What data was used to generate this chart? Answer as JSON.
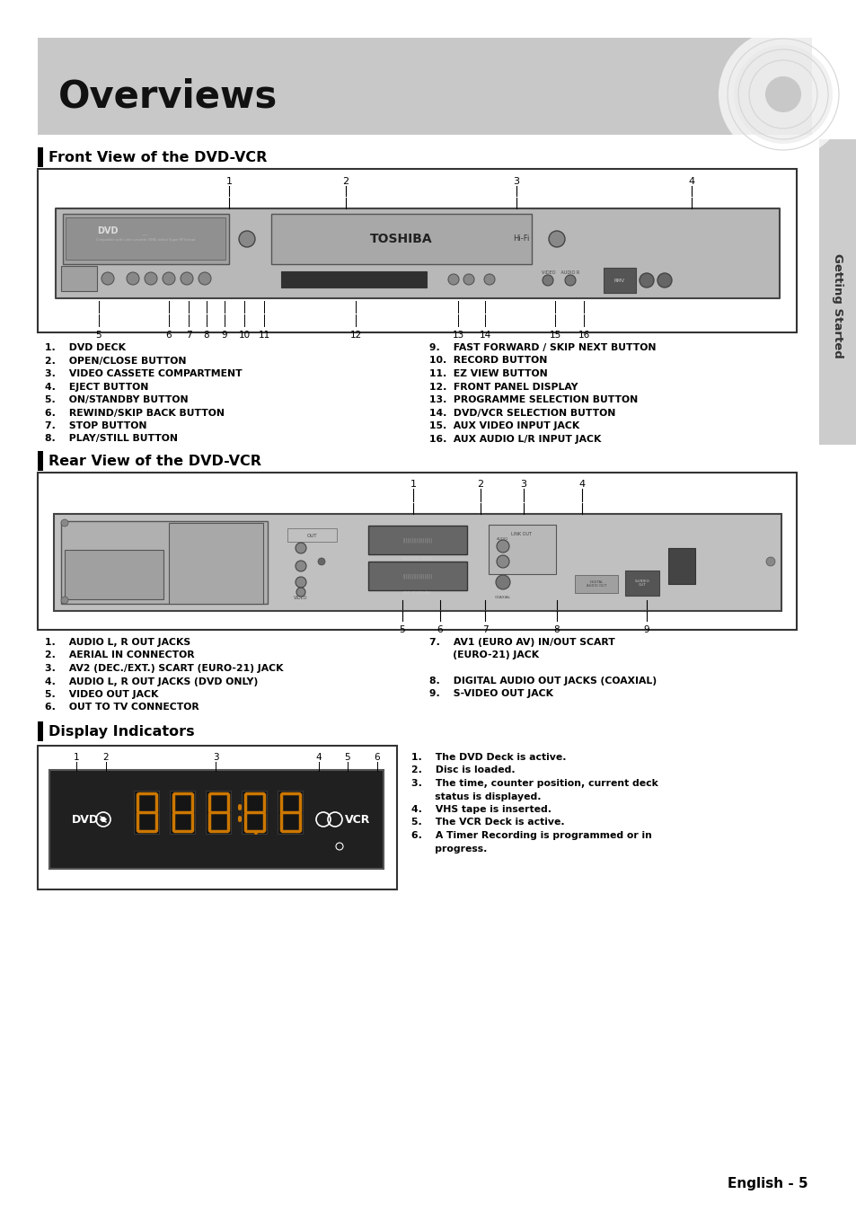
{
  "page_bg": "#ffffff",
  "header_bg": "#c8c8c8",
  "header_text": "Overviews",
  "section_bar_color": "#000000",
  "sidebar_bg": "#cccccc",
  "sidebar_text": "Getting Started",
  "section1_title": "Front View of the DVD-VCR",
  "section2_title": "Rear View of the DVD-VCR",
  "section3_title": "Display Indicators",
  "front_items_left": [
    "1.    DVD DECK",
    "2.    OPEN/CLOSE BUTTON",
    "3.    VIDEO CASSETE COMPARTMENT",
    "4.    EJECT BUTTON",
    "5.    ON/STANDBY BUTTON",
    "6.    REWIND/SKIP BACK BUTTON",
    "7.    STOP BUTTON",
    "8.    PLAY/STILL BUTTON"
  ],
  "front_items_right": [
    "9.    FAST FORWARD / SKIP NEXT BUTTON",
    "10.  RECORD BUTTON",
    "11.  EZ VIEW BUTTON",
    "12.  FRONT PANEL DISPLAY",
    "13.  PROGRAMME SELECTION BUTTON",
    "14.  DVD/VCR SELECTION BUTTON",
    "15.  AUX VIDEO INPUT JACK",
    "16.  AUX AUDIO L/R INPUT JACK"
  ],
  "rear_items_left": [
    "1.    AUDIO L, R OUT JACKS",
    "2.    AERIAL IN CONNECTOR",
    "3.    AV2 (DEC./EXT.) SCART (EURO-21) JACK",
    "4.    AUDIO L, R OUT JACKS (DVD ONLY)",
    "5.    VIDEO OUT JACK",
    "6.    OUT TO TV CONNECTOR"
  ],
  "rear_items_right_1": "7.    AV1 (EURO AV) IN/OUT SCART",
  "rear_items_right_2": "       (EURO-21) JACK",
  "rear_items_right_3": "8.    DIGITAL AUDIO OUT JACKS (COAXIAL)",
  "rear_items_right_4": "9.    S-VIDEO OUT JACK",
  "display_items": [
    "1.    The DVD Deck is active.",
    "2.    Disc is loaded.",
    "3.    The time, counter position, current deck",
    "       status is displayed.",
    "4.    VHS tape is inserted.",
    "5.    The VCR Deck is active.",
    "6.    A Timer Recording is programmed or in",
    "       progress."
  ],
  "footer_text": "English - 5"
}
